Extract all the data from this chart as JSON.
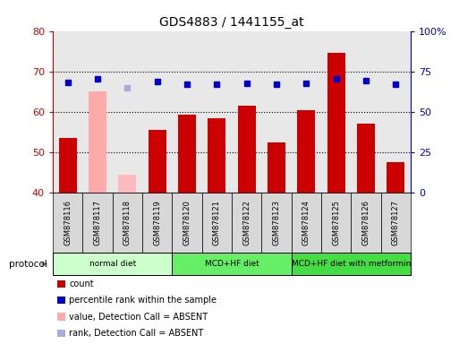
{
  "title": "GDS4883 / 1441155_at",
  "samples": [
    "GSM878116",
    "GSM878117",
    "GSM878118",
    "GSM878119",
    "GSM878120",
    "GSM878121",
    "GSM878122",
    "GSM878123",
    "GSM878124",
    "GSM878125",
    "GSM878126",
    "GSM878127"
  ],
  "bar_values": [
    53.5,
    65.0,
    44.5,
    55.5,
    59.2,
    58.5,
    61.5,
    52.5,
    60.5,
    74.5,
    57.0,
    47.5
  ],
  "bar_colors": [
    "#cc0000",
    "#ffaaaa",
    "#ffbbbb",
    "#cc0000",
    "#cc0000",
    "#cc0000",
    "#cc0000",
    "#cc0000",
    "#cc0000",
    "#cc0000",
    "#cc0000",
    "#cc0000"
  ],
  "dot_values_right": [
    68.0,
    70.5,
    65.0,
    68.5,
    67.0,
    67.0,
    67.5,
    67.0,
    67.5,
    70.5,
    69.5,
    67.0
  ],
  "dot_colors": [
    "#0000cc",
    "#0000cc",
    "#aaaadd",
    "#0000cc",
    "#0000cc",
    "#0000cc",
    "#0000cc",
    "#0000cc",
    "#0000cc",
    "#0000cc",
    "#0000cc",
    "#0000cc"
  ],
  "ylim_left": [
    40,
    80
  ],
  "ylim_right": [
    0,
    100
  ],
  "yticks_left": [
    40,
    50,
    60,
    70,
    80
  ],
  "ytick_labels_left": [
    "40",
    "50",
    "60",
    "70",
    "80"
  ],
  "yticks_right": [
    0,
    25,
    50,
    75,
    100
  ],
  "ytick_labels_right": [
    "0",
    "25",
    "50",
    "75",
    "100%"
  ],
  "hgrid_lines": [
    50,
    60,
    70
  ],
  "protocol_groups": [
    {
      "label": "normal diet",
      "start": 0,
      "end": 3,
      "color": "#ccffcc"
    },
    {
      "label": "MCD+HF diet",
      "start": 4,
      "end": 7,
      "color": "#66ee66"
    },
    {
      "label": "MCD+HF diet with metformin",
      "start": 8,
      "end": 11,
      "color": "#44dd44"
    }
  ],
  "protocol_label": "protocol",
  "legend_items": [
    {
      "label": "count",
      "color": "#cc0000"
    },
    {
      "label": "percentile rank within the sample",
      "color": "#0000cc"
    },
    {
      "label": "value, Detection Call = ABSENT",
      "color": "#ffaaaa"
    },
    {
      "label": "rank, Detection Call = ABSENT",
      "color": "#aaaadd"
    }
  ],
  "background_color": "#ffffff",
  "plot_bg_color": "#e8e8e8",
  "left_axis_color": "#cc0000",
  "right_axis_color": "#0000cc",
  "bar_width": 0.6
}
